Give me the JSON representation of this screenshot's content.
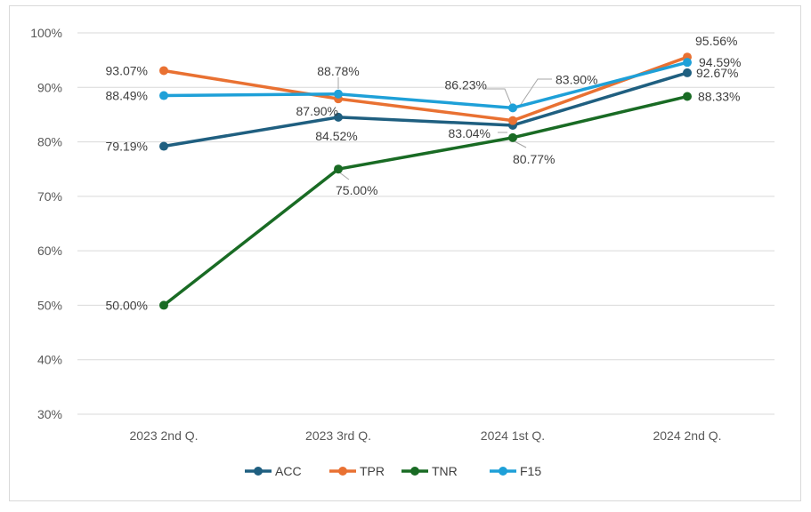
{
  "chart_data": {
    "type": "line",
    "title": "",
    "xlabel": "",
    "ylabel": "",
    "categories": [
      "2023 2nd Q.",
      "2023 3rd Q.",
      "2024 1st Q.",
      "2024 2nd Q."
    ],
    "ylim": [
      30,
      100
    ],
    "yticks": [
      30,
      40,
      50,
      60,
      70,
      80,
      90,
      100
    ],
    "ytick_labels": [
      "30%",
      "40%",
      "50%",
      "60%",
      "70%",
      "80%",
      "90%",
      "100%"
    ],
    "grid": true,
    "legend_position": "bottom",
    "series": [
      {
        "name": "ACC",
        "color": "#1f5f80",
        "values": [
          79.19,
          84.52,
          83.04,
          92.67
        ],
        "labels": [
          "79.19%",
          "84.52%",
          "83.04%",
          "92.67%"
        ]
      },
      {
        "name": "TPR",
        "color": "#e97132",
        "values": [
          93.07,
          87.9,
          83.9,
          95.56
        ],
        "labels": [
          "93.07%",
          "87.90%",
          "83.90%",
          "95.56%"
        ]
      },
      {
        "name": "TNR",
        "color": "#196b24",
        "values": [
          50.0,
          75.0,
          80.77,
          88.33
        ],
        "labels": [
          "50.00%",
          "75.00%",
          "80.77%",
          "88.33%"
        ]
      },
      {
        "name": "F15",
        "color": "#1ea0d8",
        "values": [
          88.49,
          88.78,
          86.23,
          94.59
        ],
        "labels": [
          "88.49%",
          "88.78%",
          "86.23%",
          "94.59%"
        ]
      }
    ]
  }
}
